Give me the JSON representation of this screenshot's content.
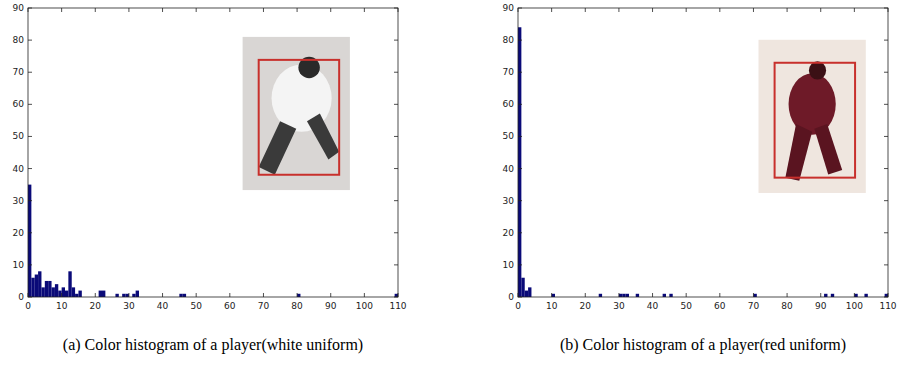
{
  "chart_data": [
    {
      "type": "bar",
      "title": "(a) Color histogram of a player(white uniform)",
      "x": [
        0,
        1,
        2,
        3,
        4,
        5,
        6,
        7,
        8,
        9,
        10,
        11,
        12,
        13,
        14,
        15,
        21,
        22,
        26,
        28,
        29,
        31,
        32,
        45,
        46,
        80,
        109
      ],
      "values": [
        35,
        6,
        7,
        8,
        3,
        5,
        5,
        3,
        4,
        2,
        3,
        2,
        8,
        3,
        1,
        2,
        2,
        2,
        1,
        1,
        1,
        1,
        2,
        1,
        1,
        1,
        1
      ],
      "color": "#0a0a78",
      "xlim": [
        0,
        110
      ],
      "ylim": [
        0,
        90
      ],
      "xticks": [
        0,
        10,
        20,
        30,
        40,
        50,
        60,
        70,
        80,
        90,
        100,
        110
      ],
      "yticks": [
        0,
        10,
        20,
        30,
        40,
        50,
        60,
        70,
        80,
        90
      ]
    },
    {
      "type": "bar",
      "title": "(b) Color histogram of a player(red uniform)",
      "x": [
        0,
        1,
        2,
        3,
        10,
        24,
        30,
        31,
        32,
        35,
        43,
        45,
        70,
        91,
        93,
        100,
        103,
        109
      ],
      "values": [
        84,
        6,
        2,
        3,
        1,
        1,
        1,
        1,
        1,
        1,
        1,
        1,
        1,
        1,
        1,
        1,
        1,
        1
      ],
      "color": "#0a0a78",
      "xlim": [
        0,
        110
      ],
      "ylim": [
        0,
        90
      ],
      "xticks": [
        0,
        10,
        20,
        30,
        40,
        50,
        60,
        70,
        80,
        90,
        100,
        110
      ],
      "yticks": [
        0,
        10,
        20,
        30,
        40,
        50,
        60,
        70,
        80,
        90
      ]
    }
  ]
}
